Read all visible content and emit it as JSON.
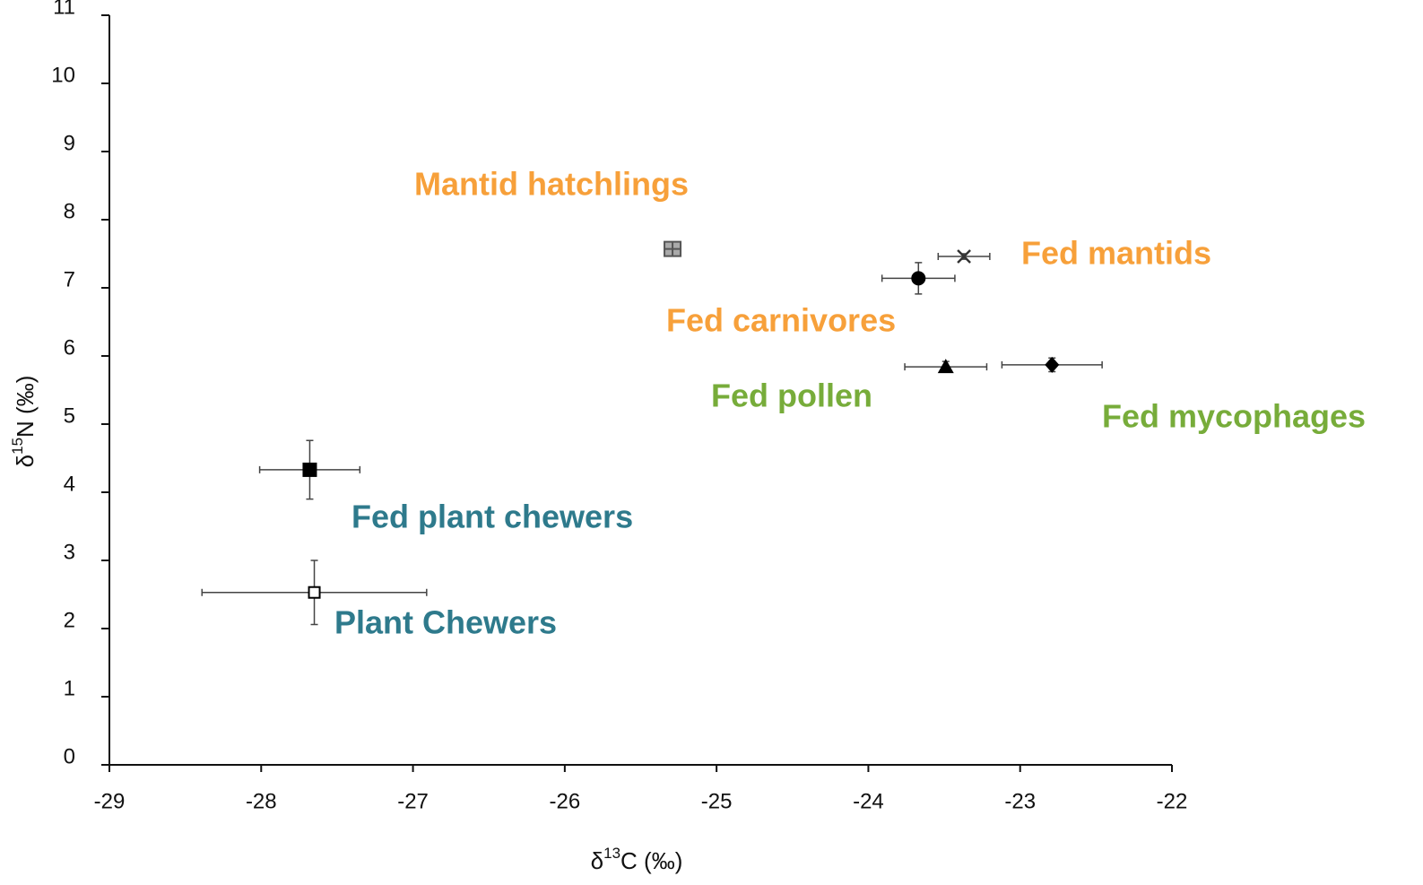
{
  "chart_data": {
    "type": "scatter",
    "x_label": {
      "prefix": "δ",
      "sup": "13",
      "suffix": "C (‰)"
    },
    "y_label": {
      "prefix": "δ",
      "sup": "15",
      "suffix": "N (‰)"
    },
    "xlim": [
      -29,
      -22
    ],
    "ylim": [
      0,
      11
    ],
    "xticks": [
      -29,
      -28,
      -27,
      -26,
      -25,
      -24,
      -23,
      -22
    ],
    "yticks": [
      0,
      1,
      2,
      3,
      4,
      5,
      6,
      7,
      8,
      9,
      10,
      11
    ],
    "series": [
      {
        "name": "Mantid hatchlings",
        "marker": "plus-square",
        "color": "#888888",
        "label_color": "#f7a03a",
        "x": [
          -25.29
        ],
        "values": [
          7.57
        ],
        "xerr": [
          0.04
        ],
        "yerr": [
          0.06
        ]
      },
      {
        "name": "Fed mantids",
        "marker": "x",
        "color": "#333333",
        "label_color": "#f7a03a",
        "x": [
          -23.37
        ],
        "values": [
          7.46
        ],
        "xerr": [
          0.17
        ],
        "yerr": [
          0.04
        ]
      },
      {
        "name": "Fed carnivores",
        "marker": "circle",
        "color": "#000000",
        "label_color": "#f7a03a",
        "x": [
          -23.67
        ],
        "values": [
          7.14
        ],
        "xerr": [
          0.24
        ],
        "yerr": [
          0.23
        ]
      },
      {
        "name": "Fed pollen",
        "marker": "triangle",
        "color": "#000000",
        "label_color": "#77ac3a",
        "x": [
          -23.49
        ],
        "values": [
          5.84
        ],
        "xerr": [
          0.27
        ],
        "yerr": [
          0.08
        ]
      },
      {
        "name": "Fed mycophages",
        "marker": "diamond",
        "color": "#000000",
        "label_color": "#77ac3a",
        "x": [
          -22.79
        ],
        "values": [
          5.87
        ],
        "xerr": [
          0.33
        ],
        "yerr": [
          0.1
        ]
      },
      {
        "name": "Fed plant chewers",
        "marker": "square",
        "color": "#000000",
        "label_color": "#2e7a8c",
        "x": [
          -27.68
        ],
        "values": [
          4.33
        ],
        "xerr": [
          0.33
        ],
        "yerr": [
          0.43
        ]
      },
      {
        "name": "Plant Chewers",
        "marker": "open-square",
        "color": "#000000",
        "label_color": "#2e7a8c",
        "x": [
          -27.65
        ],
        "values": [
          2.53
        ],
        "xerr": [
          0.74
        ],
        "yerr": [
          0.47
        ]
      }
    ]
  }
}
